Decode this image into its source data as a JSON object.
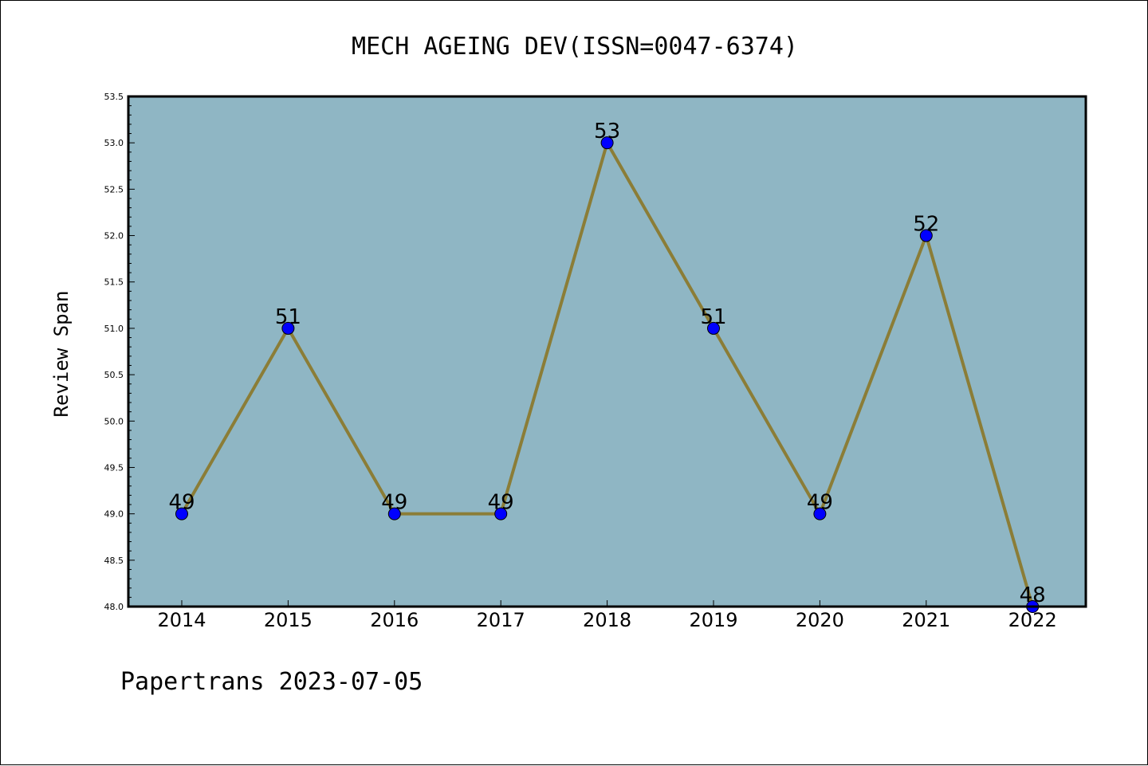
{
  "footer": "Papertrans 2023-07-05",
  "chart_data": {
    "type": "line",
    "title": "MECH AGEING DEV(ISSN=0047-6374)",
    "xlabel": "",
    "ylabel": "Review Span",
    "x": [
      "2014",
      "2015",
      "2016",
      "2017",
      "2018",
      "2019",
      "2020",
      "2021",
      "2022"
    ],
    "series": [
      {
        "values": [
          49,
          51,
          49,
          49,
          53,
          51,
          49,
          52,
          48
        ]
      }
    ],
    "data_labels": [
      "49",
      "51",
      "49",
      "49",
      "53",
      "51",
      "49",
      "52",
      "48"
    ],
    "ylim": [
      48.0,
      53.5
    ],
    "yticks": [
      "48.0",
      "48.5",
      "49.0",
      "49.5",
      "50.0",
      "50.5",
      "51.0",
      "51.5",
      "52.0",
      "52.5",
      "53.0",
      "53.5"
    ],
    "grid": false,
    "colors": {
      "plot_bg": "#8fb6c4",
      "line": "#8b7d37",
      "marker": "#0000ff"
    }
  }
}
